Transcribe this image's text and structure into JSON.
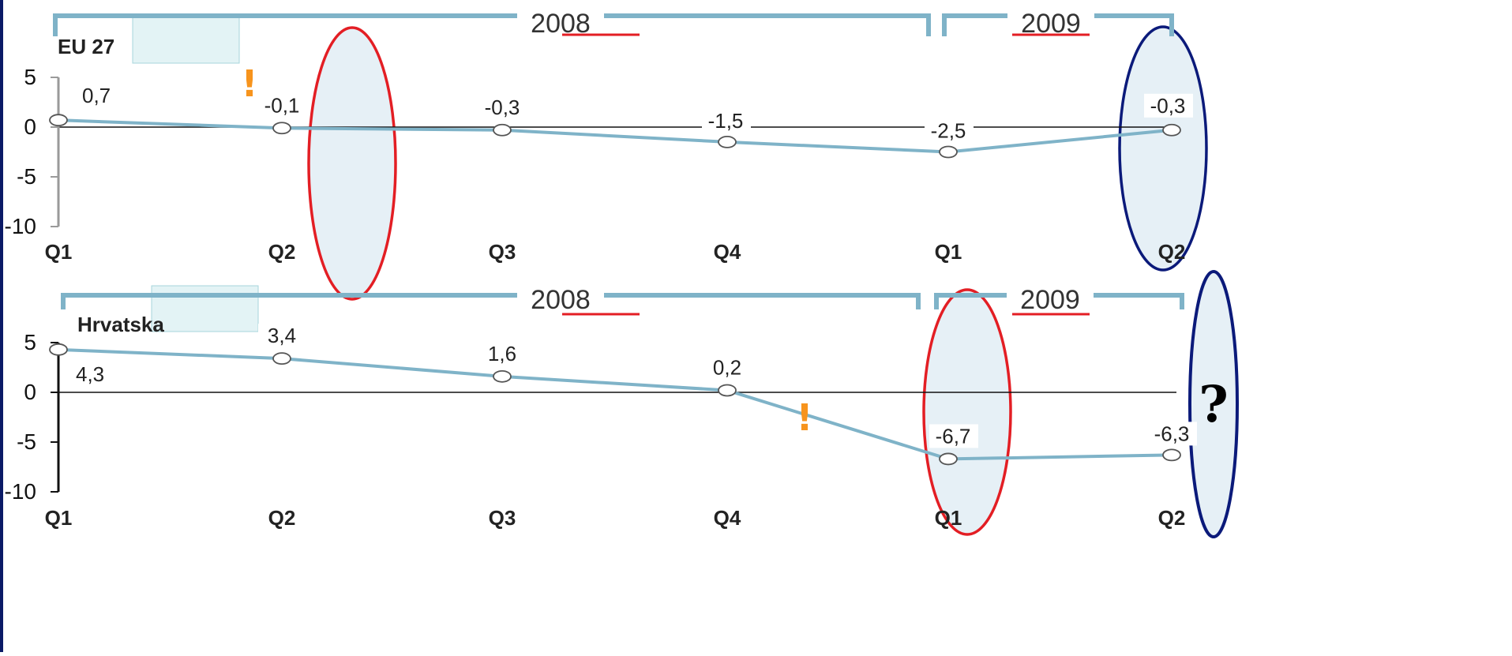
{
  "chart_data": [
    {
      "type": "line",
      "region_label": "EU 27",
      "categories": [
        "Q1",
        "Q2",
        "Q3",
        "Q4",
        "Q1",
        "Q2"
      ],
      "years": [
        {
          "label": "2008",
          "span": [
            "Q1",
            "Q4"
          ]
        },
        {
          "label": "2009",
          "span": [
            "Q1",
            "Q2"
          ]
        }
      ],
      "series": [
        {
          "values": [
            0.7,
            -0.1,
            -0.3,
            -1.5,
            -2.5,
            -0.3
          ],
          "value_labels": [
            "0,7",
            "-0,1",
            "-0,3",
            "-1,5",
            "-2,5",
            "-0,3"
          ]
        }
      ],
      "ylim": [
        -10,
        5
      ],
      "yticks": [
        5,
        0,
        -5,
        -10
      ],
      "ytick_labels": [
        "5",
        "0",
        "-5",
        "-10"
      ],
      "zero_line": true,
      "annotations": [
        {
          "type": "ellipse",
          "color": "#e31e24",
          "between": [
            "Q2",
            "Q3"
          ]
        },
        {
          "type": "ellipse",
          "color": "#0b1a7a",
          "at": "Q2 2009"
        },
        {
          "type": "marker",
          "text": "!",
          "color": "#f7941d",
          "between": [
            "Q1",
            "Q2"
          ]
        }
      ]
    },
    {
      "type": "line",
      "region_label": "Hrvatska",
      "categories": [
        "Q1",
        "Q2",
        "Q3",
        "Q4",
        "Q1",
        "Q2"
      ],
      "years": [
        {
          "label": "2008",
          "span": [
            "Q1",
            "Q4"
          ]
        },
        {
          "label": "2009",
          "span": [
            "Q1",
            "Q2"
          ]
        }
      ],
      "series": [
        {
          "values": [
            4.3,
            3.4,
            1.6,
            0.2,
            -6.7,
            -6.3
          ],
          "value_labels": [
            "4,3",
            "3,4",
            "1,6",
            "0,2",
            "-6,7",
            "-6,3"
          ]
        }
      ],
      "ylim": [
        -10,
        5
      ],
      "yticks": [
        5,
        0,
        -5,
        -10
      ],
      "ytick_labels": [
        "5",
        "0",
        "-5",
        "-10"
      ],
      "zero_line": true,
      "annotations": [
        {
          "type": "ellipse",
          "color": "#e31e24",
          "at": "Q1 2009"
        },
        {
          "type": "ellipse",
          "color": "#0b1a7a",
          "text": "?"
        },
        {
          "type": "marker",
          "text": "!",
          "color": "#f7941d",
          "between": [
            "Q4",
            "Q1"
          ]
        }
      ]
    }
  ],
  "colors": {
    "line": "#7fb3c8",
    "bracket": "#7fb3c8",
    "red": "#e31e24",
    "navy": "#0b1a7a",
    "accent": "#f7941d"
  },
  "marks": {
    "question": "?",
    "exclamation": "!"
  }
}
